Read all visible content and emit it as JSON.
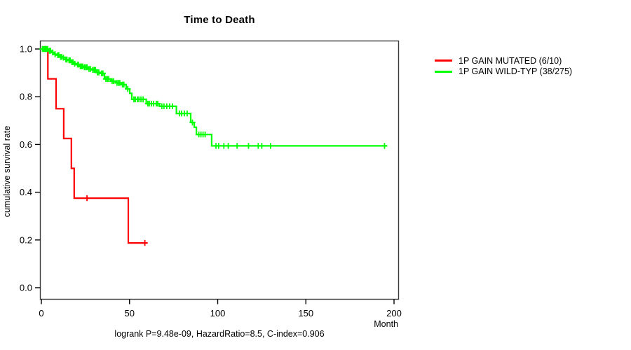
{
  "title": "Time to Death",
  "footer": "logrank P=9.48e-09, HazardRatio=8.5, C-index=0.906",
  "axes": {
    "x_label": "Month",
    "y_label": "cumulative survival rate",
    "x_ticks": [
      0,
      50,
      100,
      150,
      200
    ],
    "y_ticks": [
      "0.0",
      "0.2",
      "0.4",
      "0.6",
      "0.8",
      "1.0"
    ]
  },
  "legend": [
    {
      "label": "1P GAIN MUTATED (6/10)",
      "color": "#ff0000"
    },
    {
      "label": "1P GAIN WILD-TYP (38/275)",
      "color": "#00ff00"
    }
  ],
  "chart_data": {
    "type": "line",
    "subtype": "kaplan_meier_step",
    "title": "Time to Death",
    "xlabel": "Month",
    "ylabel": "cumulative survival rate",
    "xlim": [
      0,
      202
    ],
    "ylim": [
      0,
      1.04
    ],
    "grid": false,
    "legend_position": "right",
    "annotation": "logrank P=9.48e-09, HazardRatio=8.5, C-index=0.906",
    "series": [
      {
        "name": "1P GAIN MUTATED (6/10)",
        "events": "6/10",
        "color": "#ff0000",
        "steps": [
          [
            0,
            1.0
          ],
          [
            3.7,
            0.875
          ],
          [
            8.35,
            0.75
          ],
          [
            12.7,
            0.625
          ],
          [
            17.0,
            0.5
          ],
          [
            18.6,
            0.375
          ],
          [
            49.3,
            0.1875
          ]
        ],
        "end_month": 60,
        "censor_marks": [
          [
            2.3,
            1.0
          ],
          [
            25.9,
            0.375
          ],
          [
            58.7,
            0.1875
          ]
        ]
      },
      {
        "name": "1P GAIN WILD-TYP (38/275)",
        "events": "38/275",
        "color": "#00ff00",
        "steps": [
          [
            0,
            1.0
          ],
          [
            4.0,
            0.9927
          ],
          [
            5.6,
            0.9855
          ],
          [
            7.2,
            0.978
          ],
          [
            8.7,
            0.9745
          ],
          [
            10.3,
            0.967
          ],
          [
            11.9,
            0.9635
          ],
          [
            13.5,
            0.956
          ],
          [
            15.1,
            0.9525
          ],
          [
            16.7,
            0.945
          ],
          [
            18.3,
            0.938
          ],
          [
            19.9,
            0.9345
          ],
          [
            21.5,
            0.9273
          ],
          [
            23.8,
            0.9236
          ],
          [
            26.2,
            0.9164
          ],
          [
            28.6,
            0.9127
          ],
          [
            31.0,
            0.9018
          ],
          [
            33.4,
            0.898
          ],
          [
            35.8,
            0.8745
          ],
          [
            39.4,
            0.8654
          ],
          [
            42.1,
            0.8582
          ],
          [
            45.3,
            0.8509
          ],
          [
            48.1,
            0.8327
          ],
          [
            50.1,
            0.8145
          ],
          [
            51.3,
            0.7891
          ],
          [
            59.5,
            0.7709
          ],
          [
            67.0,
            0.76
          ],
          [
            76.6,
            0.73
          ],
          [
            84.7,
            0.692
          ],
          [
            86.7,
            0.672
          ],
          [
            87.9,
            0.642
          ],
          [
            96.6,
            0.594
          ]
        ],
        "end_month": 196,
        "censor_marks": [
          [
            0.6,
            1.0
          ],
          [
            1.2,
            1.0
          ],
          [
            1.8,
            1.0
          ],
          [
            2.4,
            1.0
          ],
          [
            3.0,
            1.0
          ],
          [
            3.5,
            1.0
          ],
          [
            4.6,
            0.9927
          ],
          [
            5.2,
            0.9927
          ],
          [
            6.4,
            0.9855
          ],
          [
            7.8,
            0.978
          ],
          [
            9.3,
            0.9745
          ],
          [
            9.9,
            0.9745
          ],
          [
            10.9,
            0.967
          ],
          [
            11.5,
            0.967
          ],
          [
            12.5,
            0.9635
          ],
          [
            13.9,
            0.956
          ],
          [
            14.5,
            0.956
          ],
          [
            15.7,
            0.9525
          ],
          [
            16.3,
            0.9525
          ],
          [
            17.3,
            0.945
          ],
          [
            17.9,
            0.945
          ],
          [
            18.9,
            0.938
          ],
          [
            20.5,
            0.9345
          ],
          [
            21.0,
            0.9345
          ],
          [
            22.1,
            0.9273
          ],
          [
            22.8,
            0.9273
          ],
          [
            23.4,
            0.9273
          ],
          [
            24.4,
            0.9236
          ],
          [
            25.2,
            0.9236
          ],
          [
            25.9,
            0.9236
          ],
          [
            27.0,
            0.9164
          ],
          [
            27.8,
            0.9164
          ],
          [
            29.2,
            0.9127
          ],
          [
            30.0,
            0.9127
          ],
          [
            30.6,
            0.9127
          ],
          [
            31.8,
            0.9018
          ],
          [
            32.6,
            0.9018
          ],
          [
            34.1,
            0.898
          ],
          [
            34.9,
            0.898
          ],
          [
            36.6,
            0.8745
          ],
          [
            37.4,
            0.8745
          ],
          [
            38.2,
            0.8745
          ],
          [
            40.1,
            0.8654
          ],
          [
            40.9,
            0.8654
          ],
          [
            42.9,
            0.8582
          ],
          [
            43.7,
            0.8582
          ],
          [
            44.5,
            0.8582
          ],
          [
            46.0,
            0.8509
          ],
          [
            46.8,
            0.8509
          ],
          [
            49.0,
            0.8327
          ],
          [
            52.5,
            0.7891
          ],
          [
            53.3,
            0.7891
          ],
          [
            54.5,
            0.7891
          ],
          [
            55.3,
            0.7891
          ],
          [
            56.5,
            0.7891
          ],
          [
            57.7,
            0.7891
          ],
          [
            60.4,
            0.7709
          ],
          [
            61.2,
            0.7709
          ],
          [
            62.4,
            0.7709
          ],
          [
            63.6,
            0.7709
          ],
          [
            65.2,
            0.7709
          ],
          [
            66.0,
            0.7709
          ],
          [
            68.3,
            0.76
          ],
          [
            69.5,
            0.76
          ],
          [
            71.1,
            0.76
          ],
          [
            72.7,
            0.76
          ],
          [
            74.3,
            0.76
          ],
          [
            78.3,
            0.73
          ],
          [
            79.5,
            0.73
          ],
          [
            81.1,
            0.73
          ],
          [
            82.7,
            0.73
          ],
          [
            85.7,
            0.692
          ],
          [
            89.3,
            0.642
          ],
          [
            90.5,
            0.642
          ],
          [
            91.7,
            0.642
          ],
          [
            92.9,
            0.642
          ],
          [
            99.0,
            0.594
          ],
          [
            100.5,
            0.594
          ],
          [
            103.5,
            0.594
          ],
          [
            106.0,
            0.594
          ],
          [
            111.0,
            0.594
          ],
          [
            117.5,
            0.594
          ],
          [
            123.0,
            0.594
          ],
          [
            125.0,
            0.594
          ],
          [
            130.0,
            0.594
          ],
          [
            194.6,
            0.594
          ]
        ]
      }
    ]
  }
}
